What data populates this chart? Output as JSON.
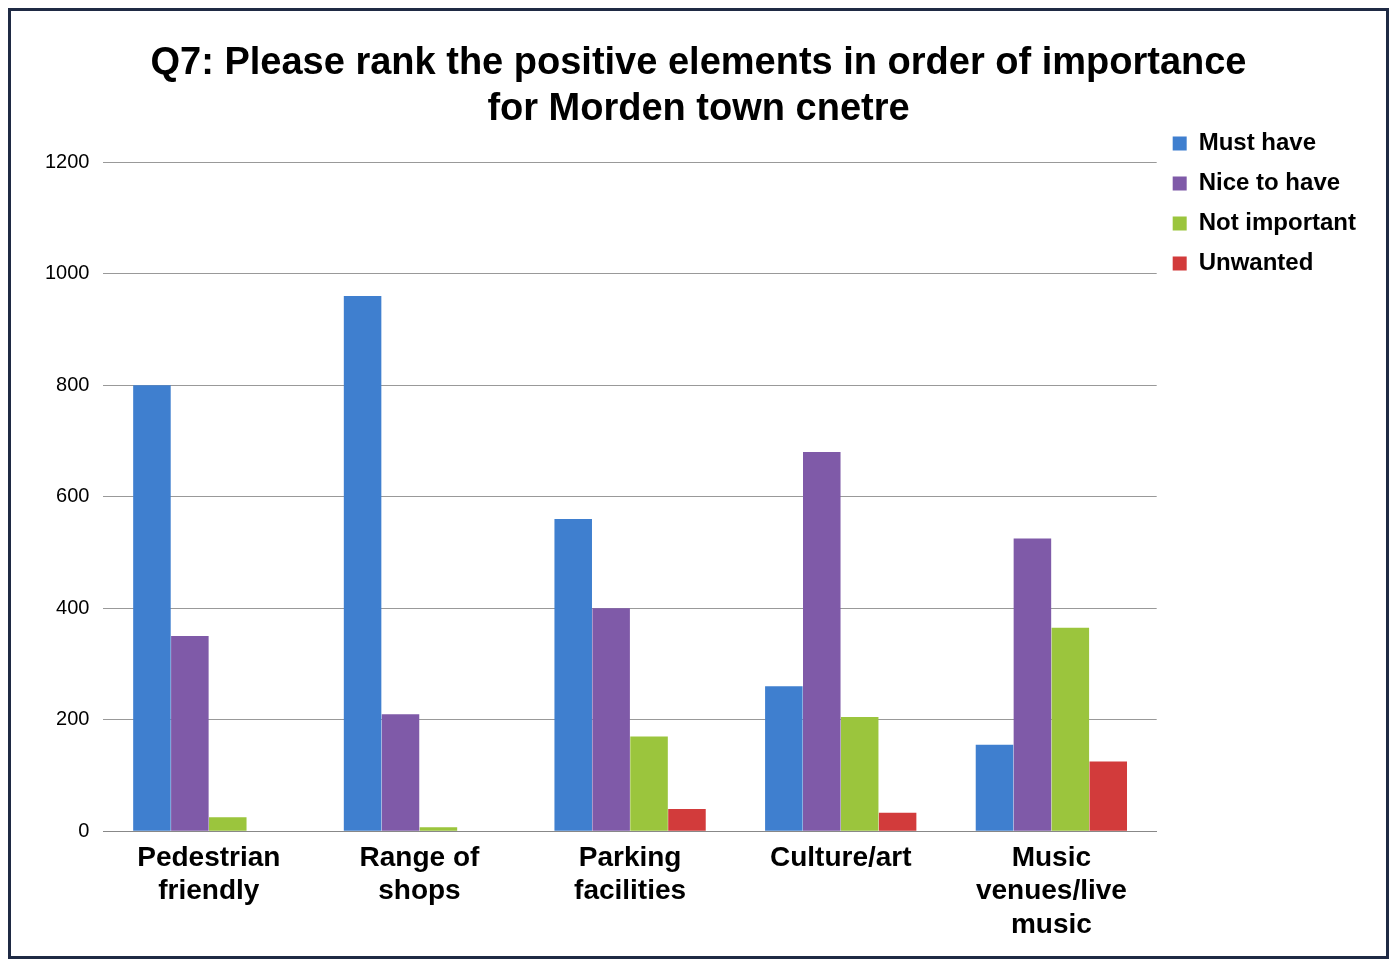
{
  "chart_data": {
    "type": "bar",
    "title": "Q7: Please rank the positive elements in order of importance for Morden town cnetre",
    "categories": [
      "Pedestrian friendly",
      "Range of shops",
      "Parking facilities",
      "Culture/art",
      "Music venues/live music"
    ],
    "series": [
      {
        "name": "Must have",
        "color": "#3f7fcf",
        "values": [
          800,
          960,
          560,
          260,
          155
        ]
      },
      {
        "name": "Nice to have",
        "color": "#7f5aa8",
        "values": [
          350,
          210,
          400,
          680,
          525
        ]
      },
      {
        "name": "Not important",
        "color": "#9bc53d",
        "values": [
          25,
          7,
          170,
          205,
          365
        ]
      },
      {
        "name": "Unwanted",
        "color": "#d23b3b",
        "values": [
          0,
          0,
          40,
          33,
          125
        ]
      }
    ],
    "ylim": [
      0,
      1200
    ],
    "yticks": [
      0,
      200,
      400,
      600,
      800,
      1000,
      1200
    ],
    "grid": "y",
    "legend": "right"
  }
}
